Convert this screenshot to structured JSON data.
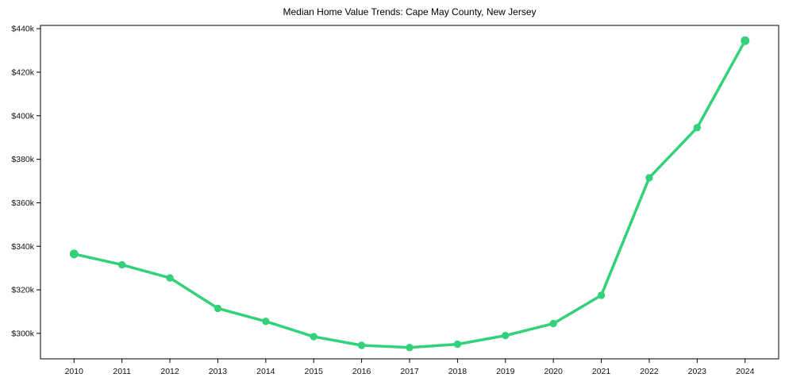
{
  "chart_data": {
    "type": "line",
    "title": "Median Home Value Trends: Cape May County, New Jersey",
    "x": [
      2010,
      2011,
      2012,
      2013,
      2014,
      2015,
      2016,
      2017,
      2018,
      2019,
      2020,
      2021,
      2022,
      2023,
      2024
    ],
    "x_tick_labels": [
      "2010",
      "2011",
      "2012",
      "2013",
      "2014",
      "2015",
      "2016",
      "2017",
      "2018",
      "2019",
      "2020",
      "2021",
      "2022",
      "2023",
      "2024"
    ],
    "series": [
      {
        "name": "Median Home Value",
        "values": [
          336500,
          331500,
          325500,
          311500,
          305500,
          298500,
          294500,
          293500,
          295000,
          299000,
          304500,
          317500,
          371500,
          394500,
          434500
        ]
      }
    ],
    "y_ticks": [
      300000,
      320000,
      340000,
      360000,
      380000,
      400000,
      420000,
      440000
    ],
    "y_tick_labels": [
      "$300k",
      "$320k",
      "$340k",
      "$360k",
      "$380k",
      "$400k",
      "$420k",
      "$440k"
    ],
    "xlim": [
      2009.3,
      2024.7
    ],
    "ylim": [
      288300,
      441500
    ],
    "grid": false,
    "legend": "none",
    "xlabel": "",
    "ylabel": "",
    "line_color": "#33d17a",
    "marker_color": "#33d17a",
    "axis_color": "#000000",
    "background_color": "#ffffff"
  }
}
